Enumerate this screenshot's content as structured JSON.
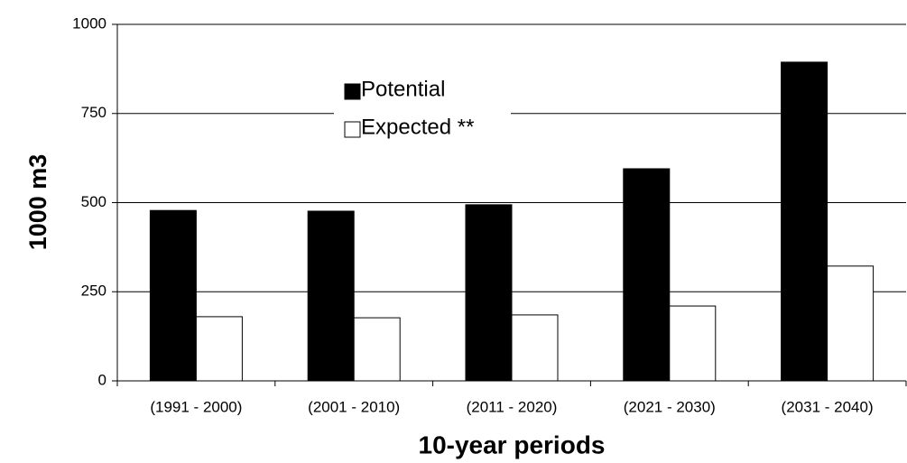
{
  "chart_data": {
    "type": "bar",
    "categories": [
      "(1991 - 2000)",
      "(2001 - 2010)",
      "(2011 - 2020)",
      "(2021 - 2030)",
      "(2031 - 2040)"
    ],
    "series": [
      {
        "name": "Potential",
        "color": "#000000",
        "values": [
          478,
          476,
          494,
          595,
          894
        ]
      },
      {
        "name": "Expected **",
        "color": "#ffffff",
        "values": [
          180,
          177,
          185,
          210,
          322
        ]
      }
    ],
    "ylim": [
      0,
      1000
    ],
    "yticks": [
      0,
      250,
      500,
      750,
      1000
    ],
    "grid": true,
    "ylabel": "1000 m3",
    "xlabel": "10-year periods",
    "legend": "top-center"
  }
}
